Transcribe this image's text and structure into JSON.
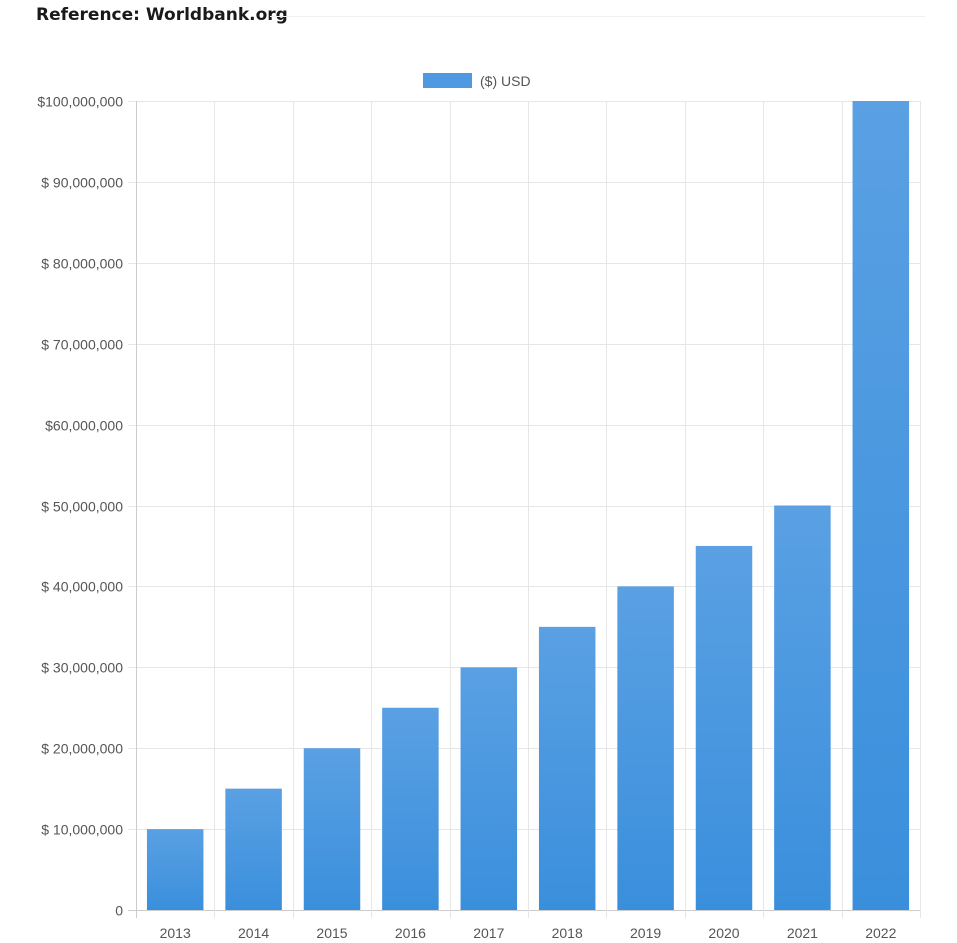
{
  "header": {
    "reference_text": "Reference: Worldbank.org"
  },
  "colors": {
    "bar_top": "#5aa0e3",
    "bar_bottom": "#3a8fdc",
    "legend_swatch": "#4f98e2",
    "grid": "#e6e6e6",
    "axis": "#cccccc"
  },
  "chart_data": {
    "type": "bar",
    "categories": [
      "2013",
      "2014",
      "2015",
      "2016",
      "2017",
      "2018",
      "2019",
      "2020",
      "2021",
      "2022"
    ],
    "series": [
      {
        "name": "($) USD",
        "values": [
          10000000,
          15000000,
          20000000,
          25000000,
          30000000,
          35000000,
          40000000,
          45000000,
          50000000,
          100000000
        ]
      }
    ],
    "ylim": [
      0,
      100000000
    ],
    "y_ticks": [
      0,
      10000000,
      20000000,
      30000000,
      40000000,
      50000000,
      60000000,
      70000000,
      80000000,
      90000000,
      100000000
    ],
    "y_tick_labels": [
      "0",
      "$ 10,000,000",
      "$ 20,000,000",
      "$ 30,000,000",
      "$ 40,000,000",
      "$ 50,000,000",
      "$60,000,000",
      "$ 70,000,000",
      "$ 80,000,000",
      "$ 90,000,000",
      "$100,000,000"
    ],
    "title": "",
    "xlabel": "",
    "ylabel": "",
    "grid": true,
    "legend_position": "top-center"
  }
}
